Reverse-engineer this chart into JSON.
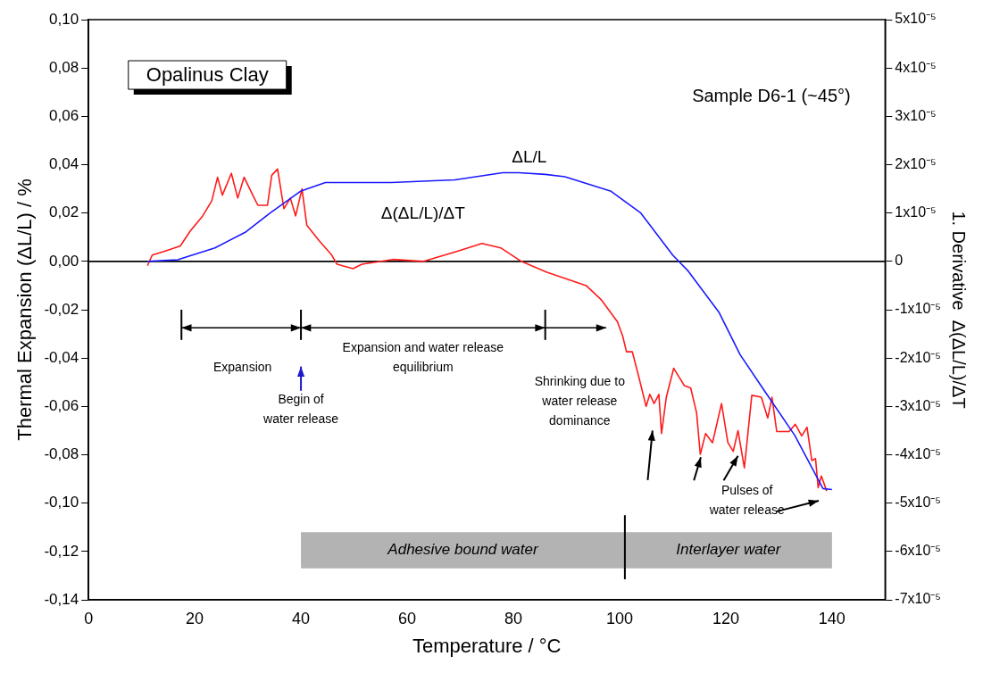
{
  "chart_data": {
    "type": "line",
    "title": "Opalinus Clay",
    "subtitle": "Sample D6-1 (~45°)",
    "xlabel": "Temperature / °C",
    "ylabel": "Thermal Expansion (ΔL/L) / %",
    "y2label": "1. Derivative  Δ(ΔL/L)/ΔT",
    "xlim": [
      0,
      150
    ],
    "xticks": [
      0,
      20,
      40,
      60,
      80,
      100,
      120,
      140
    ],
    "ylim": [
      -0.14,
      0.1
    ],
    "yticks": [
      {
        "value": -0.14,
        "label": "-0,14"
      },
      {
        "value": -0.12,
        "label": "-0,12"
      },
      {
        "value": -0.1,
        "label": "-0,10"
      },
      {
        "value": -0.08,
        "label": "-0,08"
      },
      {
        "value": -0.06,
        "label": "-0,06"
      },
      {
        "value": -0.04,
        "label": "-0,04"
      },
      {
        "value": -0.02,
        "label": "-0,02"
      },
      {
        "value": 0,
        "label": "0,00"
      },
      {
        "value": 0.02,
        "label": "0,02"
      },
      {
        "value": 0.04,
        "label": "0,04"
      },
      {
        "value": 0.06,
        "label": "0,06"
      },
      {
        "value": 0.08,
        "label": "0,08"
      },
      {
        "value": 0.1,
        "label": "0,10"
      }
    ],
    "y2lim": [
      -7e-05,
      5e-05
    ],
    "y2ticks": [
      {
        "value": -7e-05,
        "label": "-7x10⁻⁵"
      },
      {
        "value": -6e-05,
        "label": "-6x10⁻⁵"
      },
      {
        "value": -5e-05,
        "label": "-5x10⁻⁵"
      },
      {
        "value": -4e-05,
        "label": "-4x10⁻⁵"
      },
      {
        "value": -3e-05,
        "label": "-3x10⁻⁵"
      },
      {
        "value": -2e-05,
        "label": "-2x10⁻⁵"
      },
      {
        "value": -1e-05,
        "label": "-1x10⁻⁵"
      },
      {
        "value": 0,
        "label": "0"
      },
      {
        "value": 1e-05,
        "label": "1x10⁻⁵"
      },
      {
        "value": 2e-05,
        "label": "2x10⁻⁵"
      },
      {
        "value": 3e-05,
        "label": "3x10⁻⁵"
      },
      {
        "value": 4e-05,
        "label": "4x10⁻⁵"
      },
      {
        "value": 5e-05,
        "label": "5x10⁻⁵"
      }
    ],
    "grid": false,
    "legend": false,
    "marker": "none",
    "line_style": "solid",
    "series": [
      {
        "name": "ΔL/L",
        "color": "#1a1aff",
        "x": [
          11.1,
          16.8,
          23.8,
          29.5,
          34.2,
          39.9,
          44.6,
          57,
          69,
          78,
          81,
          86,
          89.7,
          98.4,
          104,
          110,
          112.8,
          118.7,
          122.7,
          127.3,
          133,
          138.3,
          140
        ],
        "values": [
          0,
          0.0007,
          0.0056,
          0.012,
          0.02,
          0.029,
          0.0326,
          0.0326,
          0.0337,
          0.0367,
          0.0367,
          0.036,
          0.035,
          0.029,
          0.02,
          0.0026,
          -0.0037,
          -0.021,
          -0.0386,
          -0.0536,
          -0.072,
          -0.094,
          -0.0944
        ]
      },
      {
        "name": "Δ(ΔL/L)/ΔT",
        "color": "#ff1a1a",
        "axis": "y2",
        "x": [
          11.1,
          12,
          14.6,
          17.3,
          19.1,
          21.5,
          23.2,
          24.3,
          25.2,
          26.9,
          28.1,
          29.3,
          31.2,
          31.9,
          33.7,
          34.5,
          35.6,
          36.8,
          38,
          39,
          40.2,
          41.1,
          43.4,
          45.8,
          46.8,
          49.8,
          51.5,
          57.3,
          63.1,
          68.9,
          74.1,
          77.6,
          81.5,
          86.2,
          93.7,
          96.6,
          99.6,
          100.6,
          101.3,
          102.4,
          103.6,
          105,
          105.7,
          106.5,
          107.4,
          107.9,
          108.8,
          110.2,
          112.2,
          113.4,
          114.5,
          115.2,
          116.2,
          117.5,
          119.2,
          120.4,
          121.4,
          122.3,
          123.5,
          124.9,
          126.7,
          127.9,
          128.7,
          129.6,
          131.9,
          133.1,
          134.3,
          135.3,
          136.2,
          136.9,
          137.4,
          138,
          139
        ],
        "values": [
          -9e-07,
          1.3e-06,
          2.2e-06,
          3.2e-06,
          6.2e-06,
          9.4e-06,
          1.25e-05,
          1.74e-05,
          1.37e-05,
          1.82e-05,
          1.31e-05,
          1.74e-05,
          1.31e-05,
          1.16e-05,
          1.16e-05,
          1.78e-05,
          1.91e-05,
          1.09e-05,
          1.31e-05,
          9.4e-06,
          1.5e-05,
          7.5e-06,
          4.3e-06,
          1.3e-06,
          -6e-07,
          -1.5e-06,
          -6e-07,
          4e-07,
          0,
          1.9e-06,
          3.7e-06,
          2.8e-06,
          0,
          -2.2e-06,
          -5e-06,
          -8e-06,
          -1.25e-05,
          -1.55e-05,
          -1.87e-05,
          -1.87e-05,
          -2.38e-05,
          -3e-05,
          -2.75e-05,
          -2.94e-05,
          -2.75e-05,
          -3.56e-05,
          -2.81e-05,
          -2.21e-05,
          -2.57e-05,
          -2.62e-05,
          -3.13e-05,
          -3.99e-05,
          -3.56e-05,
          -3.75e-05,
          -2.94e-05,
          -3.75e-05,
          -3.93e-05,
          -3.5e-05,
          -4.27e-05,
          -2.77e-05,
          -2.81e-05,
          -3.24e-05,
          -2.81e-05,
          -3.52e-05,
          -3.52e-05,
          -3.37e-05,
          -3.61e-05,
          -3.43e-05,
          -4.12e-05,
          -4.08e-05,
          -4.68e-05,
          -4.44e-05,
          -4.75e-05
        ]
      }
    ],
    "ref_lines": [
      {
        "axis": "y",
        "value": 0,
        "color": "#000000"
      }
    ],
    "bands": [
      {
        "axis": "x",
        "from": 40,
        "to": 101,
        "label": "Adhesive bound water",
        "color": "#b3b3b3"
      },
      {
        "axis": "x",
        "from": 101,
        "to": 140,
        "label": "Interlayer water",
        "color": "#b3b3b3"
      }
    ],
    "annotations": [
      "Expansion",
      "Expansion and water release equilibrium",
      "Begin of water release",
      "Shrinking due to water release dominance",
      "Pulses of water release"
    ]
  }
}
